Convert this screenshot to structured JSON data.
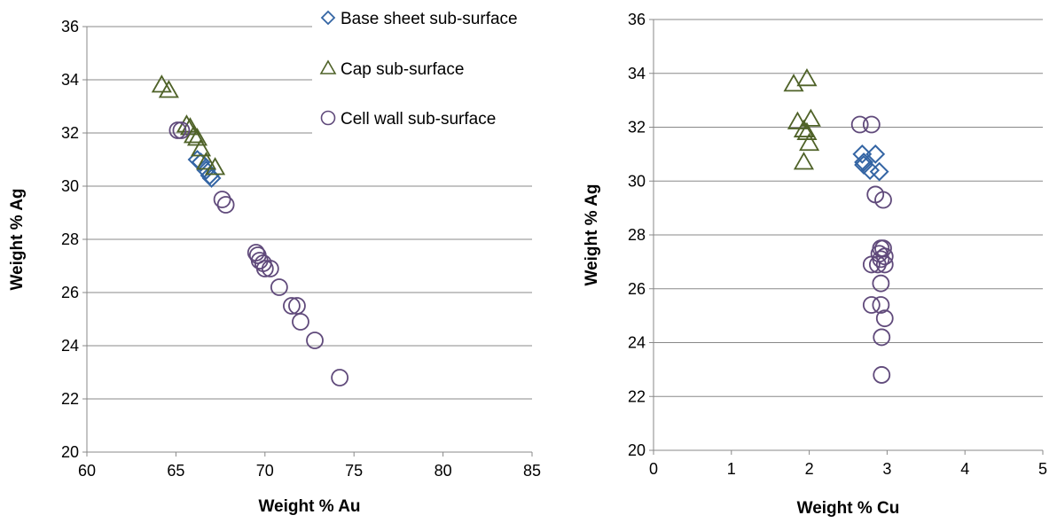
{
  "chart_data": [
    {
      "type": "scatter",
      "xlabel": "Weight % Au",
      "ylabel": "Weight % Ag",
      "xlim": [
        60,
        85
      ],
      "ylim": [
        20,
        36
      ],
      "xticks": [
        "60",
        "65",
        "70",
        "75",
        "80",
        "85"
      ],
      "yticks": [
        "20",
        "22",
        "24",
        "26",
        "28",
        "30",
        "32",
        "34",
        "36"
      ],
      "grid": "horizontal",
      "legend": "top-right",
      "series": [
        {
          "name": "Base sheet sub-surface",
          "marker": "diamond",
          "color": "#3465a4",
          "points": [
            [
              66.2,
              31.0
            ],
            [
              66.4,
              30.9
            ],
            [
              66.7,
              30.6
            ],
            [
              66.9,
              30.4
            ],
            [
              67.0,
              30.3
            ]
          ]
        },
        {
          "name": "Cap sub-surface",
          "marker": "triangle",
          "color": "#4f6228",
          "points": [
            [
              64.2,
              33.8
            ],
            [
              64.6,
              33.6
            ],
            [
              65.6,
              32.3
            ],
            [
              65.8,
              32.2
            ],
            [
              66.0,
              31.9
            ],
            [
              66.2,
              31.8
            ],
            [
              66.4,
              31.4
            ],
            [
              66.7,
              30.9
            ],
            [
              67.2,
              30.7
            ]
          ]
        },
        {
          "name": "Cell wall sub-surface",
          "marker": "circle",
          "color": "#604a7b",
          "points": [
            [
              65.1,
              32.1
            ],
            [
              65.3,
              32.1
            ],
            [
              67.6,
              29.5
            ],
            [
              67.8,
              29.3
            ],
            [
              69.5,
              27.5
            ],
            [
              69.6,
              27.4
            ],
            [
              69.7,
              27.2
            ],
            [
              69.9,
              27.1
            ],
            [
              70.0,
              26.9
            ],
            [
              70.3,
              26.9
            ],
            [
              70.8,
              26.2
            ],
            [
              71.5,
              25.5
            ],
            [
              71.8,
              25.5
            ],
            [
              72.0,
              24.9
            ],
            [
              72.8,
              24.2
            ],
            [
              74.2,
              22.8
            ]
          ]
        }
      ]
    },
    {
      "type": "scatter",
      "xlabel": "Weight % Cu",
      "ylabel": "Weight % Ag",
      "xlim": [
        0,
        5
      ],
      "ylim": [
        20,
        36
      ],
      "xticks": [
        "0",
        "1",
        "2",
        "3",
        "4",
        "5"
      ],
      "yticks": [
        "20",
        "22",
        "24",
        "26",
        "28",
        "30",
        "32",
        "34",
        "36"
      ],
      "grid": "horizontal",
      "legend": "none",
      "series": [
        {
          "name": "Base sheet sub-surface",
          "marker": "diamond",
          "color": "#3465a4",
          "points": [
            [
              2.68,
              31.0
            ],
            [
              2.85,
              31.0
            ],
            [
              2.7,
              30.6
            ],
            [
              2.7,
              30.7
            ],
            [
              2.78,
              30.4
            ],
            [
              2.9,
              30.35
            ]
          ]
        },
        {
          "name": "Cap sub-surface",
          "marker": "triangle",
          "color": "#4f6228",
          "points": [
            [
              1.8,
              33.6
            ],
            [
              1.97,
              33.8
            ],
            [
              1.85,
              32.2
            ],
            [
              2.02,
              32.3
            ],
            [
              1.93,
              31.9
            ],
            [
              1.97,
              31.8
            ],
            [
              2.0,
              31.4
            ],
            [
              1.93,
              30.7
            ]
          ]
        },
        {
          "name": "Cell wall sub-surface",
          "marker": "circle",
          "color": "#604a7b",
          "points": [
            [
              2.65,
              32.1
            ],
            [
              2.8,
              32.1
            ],
            [
              2.85,
              29.5
            ],
            [
              2.95,
              29.3
            ],
            [
              2.92,
              27.5
            ],
            [
              2.95,
              27.5
            ],
            [
              2.9,
              27.3
            ],
            [
              2.97,
              27.2
            ],
            [
              2.92,
              27.1
            ],
            [
              2.8,
              26.9
            ],
            [
              2.88,
              26.9
            ],
            [
              2.97,
              26.9
            ],
            [
              2.92,
              26.2
            ],
            [
              2.8,
              25.4
            ],
            [
              2.92,
              25.4
            ],
            [
              2.97,
              24.9
            ],
            [
              2.93,
              24.2
            ],
            [
              2.93,
              22.8
            ]
          ]
        }
      ]
    }
  ]
}
